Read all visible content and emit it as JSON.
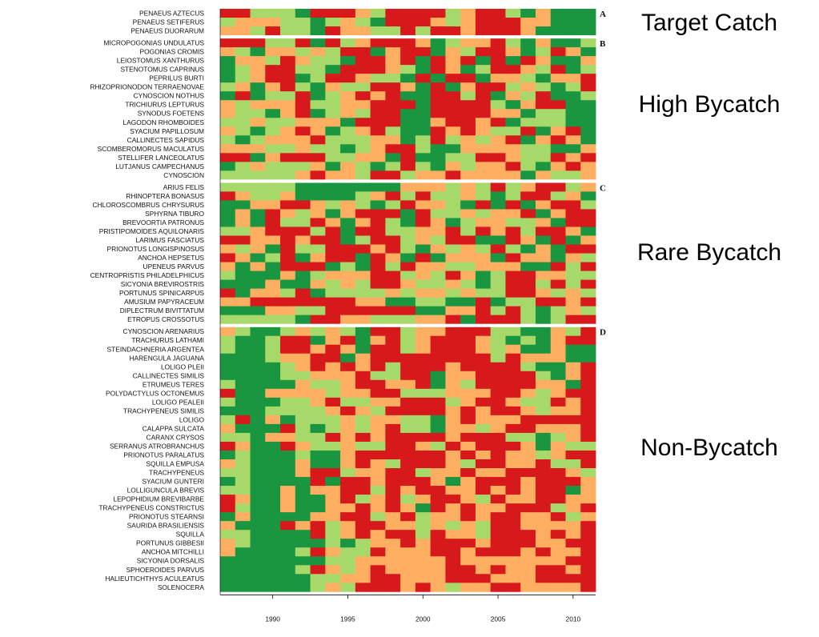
{
  "chart_data": {
    "type": "heatmap",
    "x_axis": {
      "ticks": [
        1990,
        1995,
        2000,
        2005,
        2010
      ],
      "range": [
        1987,
        2011
      ]
    },
    "years": [
      1987,
      1988,
      1989,
      1990,
      1991,
      1992,
      1993,
      1994,
      1995,
      1996,
      1997,
      1998,
      1999,
      2000,
      2001,
      2002,
      2003,
      2004,
      2005,
      2006,
      2007,
      2008,
      2009,
      2010,
      2011
    ],
    "palette": {
      "1": "#1a9641",
      "2": "#a6d96a",
      "3": "#fdae61",
      "4": "#d7191c"
    },
    "panels": [
      {
        "letter": "A",
        "group": "Target Catch",
        "species": [
          "PENAEUS AZTECUS",
          "PENAEUS SETIFERUS",
          "PENAEUS DUORARUM"
        ],
        "rows": [
          "4422214443244442344213111",
          "2333221232144432344433111",
          "3324221433224244344431111"
        ]
      },
      {
        "letter": "B",
        "group": "High Bycatch",
        "species": [
          "MICROPOGONIAS UNDULATUS",
          "POGONIAS CROMIS",
          "LEIOSTOMUS XANTHURUS",
          "STENOTOMUS CAPRINUS",
          "PEPRILUS BURTI",
          "RHIZOPRIONODON TERRAENOVAE",
          "CYNOSCION NOTHUS",
          "TRICHIURUS LEPTURUS",
          "SYNODUS FOETENS",
          "LAGODON RHOMBOIDES",
          "SYACIUM PAPILLOSUM",
          "CALLINECTES SAPIDUS",
          "SCOMBEROMORUS MACULATUS",
          "STELLIFER LANCEOLATUS",
          "LUTJANUS CAMPECHANUS",
          "CYNOSCION"
        ],
        "rows": [
          "4442241423444312334213112",
          "3213323244134413244312431",
          "1332432214434143414143113",
          "1234422144432143124432412",
          "1234412443221414413321334",
          "2313421322443141344232124",
          "1412241234341144241324112",
          "3233342233444144442134411",
          "3221341232441144443312211",
          "2232233314441134434122211",
          "3212343123421143432241341",
          "2123334222331242323413431",
          "3332232212344211333322113",
          "4413444223314112244322434",
          "1232223132124213233421343",
          "2222234332442334333313223"
        ]
      },
      {
        "letter": "C",
        "group": "Rare Bycatch",
        "species": [
          "ARIUS FELIS",
          "RHINOPTERA BONASUS",
          "CHLOROSCOMBRUS CHRYSURUS",
          "SPHYRNA TIBURO",
          "BREVOORTIA PATRONUS",
          "PRISTIPOMOIDES AQUILONARIS",
          "LARIMUS FASCIATUS",
          "PRIONOTUS LONGISPINOSUS",
          "ANCHOA HEPSETUS",
          "UPENEUS PARVUS",
          "CENTROPRISTIS PHILADELPHICUS",
          "SICYONIA BREVIROSTRIS",
          "PORTUNUS SPINICARPUS",
          "AMUSIUM PAPYRACEUM",
          "DIPLECTRUM BIVITTATUM",
          "ETROPUS CROSSOTUS"
        ],
        "rows": [
          "2222211111113332324234423",
          "4322311112342422321244231",
          "1133443232124332141413442",
          "1314323134441422323341344",
          "1314224313421431233223144",
          "2234442414422334243424431",
          "4433434412442324411431413",
          "3231422444342132324213144",
          "4312413441431413331433132",
          "3131444121424332233311424",
          "2111312333442324312443322",
          "1113113232443223212442424",
          "4133241222232332322443232",
          "3344444443311221141224434",
          "1113322444444113342421232",
          "2222214433222334144421244"
        ]
      },
      {
        "letter": "D",
        "group": "Non-Bycatch",
        "species": [
          "CYNOSCION ARENARIUS",
          "TRACHURUS LATHAMI",
          "STEINDACHNERIA ARGENTEA",
          "HARENGULA JAGUANA",
          "LOLIGO PLEII",
          "CALLINECTES SIMILIS",
          "ETRUMEUS TERES",
          "POLYDACTYLUS OCTONEMUS",
          "LOLIGO PEALEII",
          "TRACHYPENEUS SIMILIS",
          "LOLIGO",
          "CALAPPA SULCATA",
          "CARANX CRYSOS",
          "SERRANUS ATROBRANCHUS",
          "PRIONOTUS PARALATUS",
          "SQUILLA EMPUSA",
          "TRACHYPENEUS",
          "SYACIUM GUNTERI",
          "LOLLIGUNCULA BREVIS",
          "LEPOPHIDIUM BREVIBARBE",
          "TRACHYPENEUS CONSTRICTUS",
          "PRIONOTUS STEARNSI",
          "SAURIDA BRASILIENSIS",
          "SQUILLA",
          "PORTUNUS GIBBESII",
          "ANCHOA MITCHILLI",
          "SICYONIA DORSALIS",
          "SPHOEROIDES PARVUS",
          "HALIEUTICHTHYS ACULEATUS",
          "SOLENOCERA"
        ],
        "rows": [
          "3211232321442334442211324",
          "2112441341342344432121344",
          "2112443431442344432311311",
          "1112334413444444442433311",
          "1111234343424443444421134",
          "1111223334224413344442134",
          "2111132234433413244443314",
          "4113333233442223334432344",
          "2111223422334442344322434",
          "1112222343244443434432334",
          "2413122232332213433344444",
          "3111421232342213323443334",
          "2213322434344443444221234",
          "4311432232244324344431322",
          "1211121134444443434332344",
          "3211131134324443244334224",
          "2211134423344233433444432",
          "1211114144344431344434443",
          "2211313344243443343434413",
          "4311311342342344324334433",
          "4211311334343143433444234",
          "1311113344234233434433423",
          "3111434234433232324433334",
          "2211114234344243324443434",
          "3211111212334344434443344",
          "3111124322433344344434334",
          "1111111223333334333333344",
          "1111124323433334434334434",
          "1111112233443334443334444",
          "1111112324443432334433334"
        ]
      }
    ]
  }
}
